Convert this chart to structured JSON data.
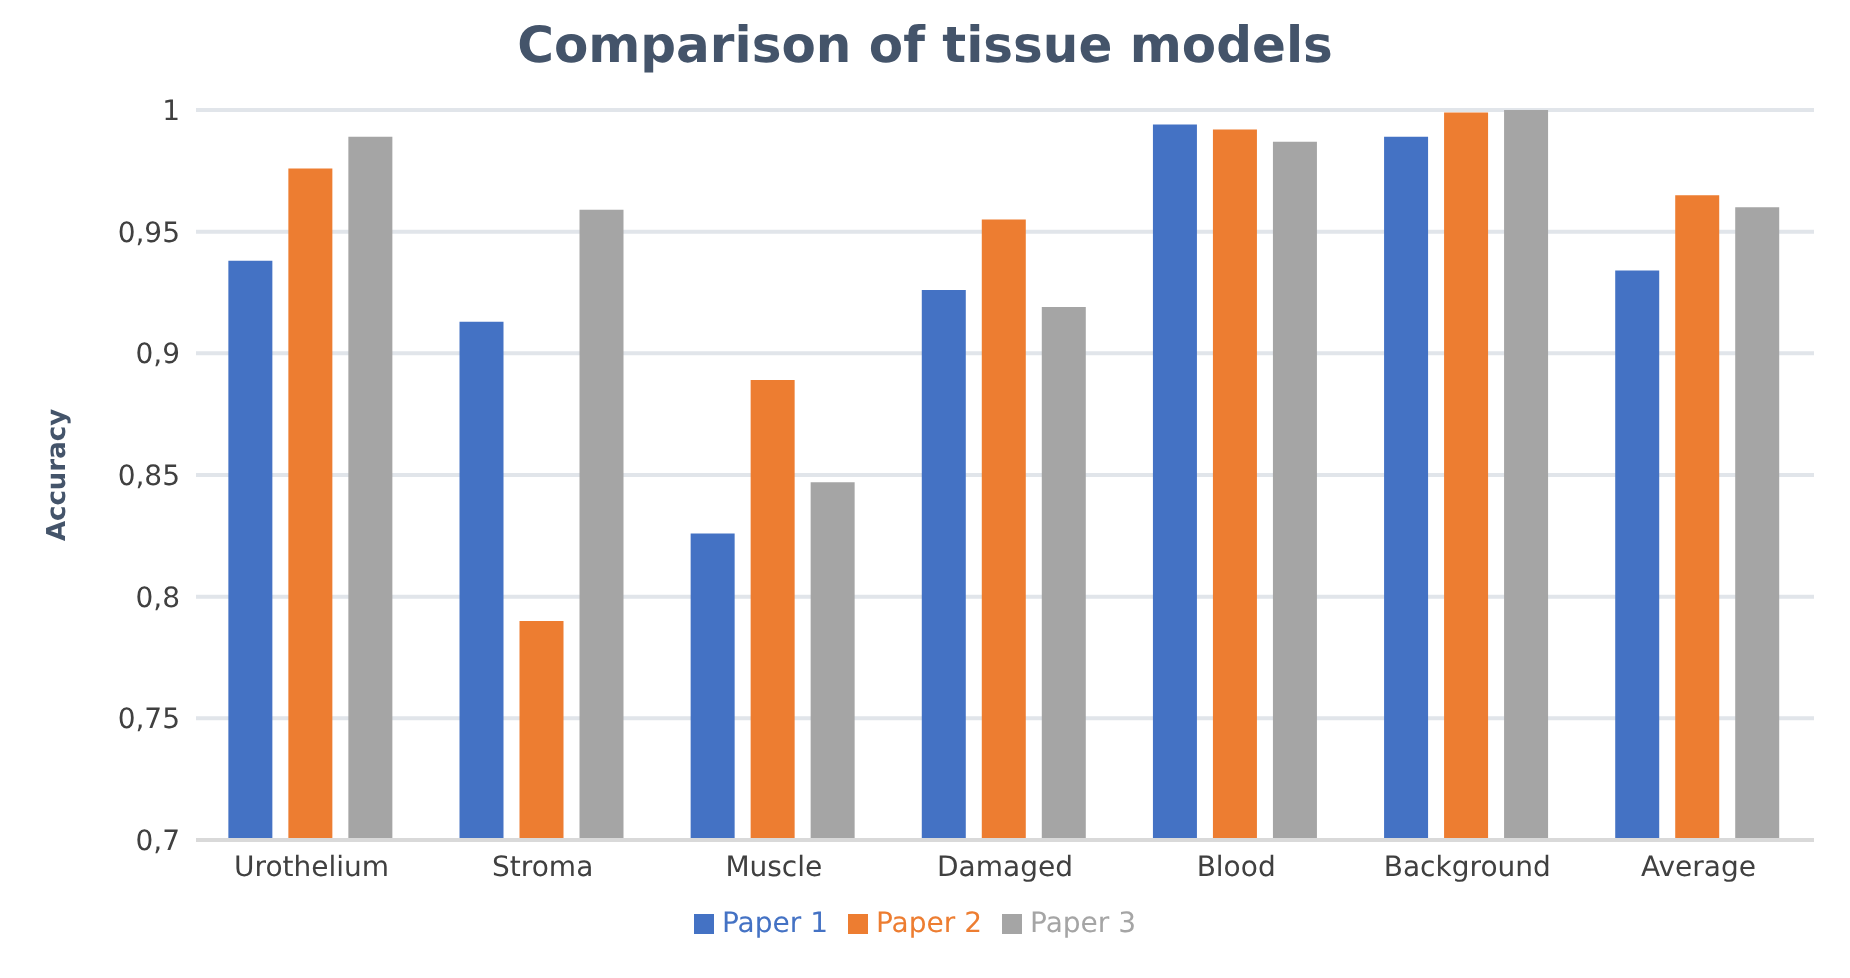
{
  "chart_data": {
    "type": "bar",
    "title": "Comparison of tissue models",
    "ylabel": "Accuracy",
    "categories": [
      "Urothelium",
      "Stroma",
      "Muscle",
      "Damaged",
      "Blood",
      "Background",
      "Average"
    ],
    "series": [
      {
        "name": "Paper 1",
        "color": "#4472c4",
        "values": [
          0.938,
          0.913,
          0.826,
          0.926,
          0.994,
          0.989,
          0.934
        ]
      },
      {
        "name": "Paper 2",
        "color": "#ed7d31",
        "values": [
          0.976,
          0.79,
          0.889,
          0.955,
          0.992,
          0.999,
          0.965
        ]
      },
      {
        "name": "Paper 3",
        "color": "#a5a5a5",
        "values": [
          0.989,
          0.959,
          0.847,
          0.919,
          0.987,
          1.0,
          0.96
        ]
      }
    ],
    "ylim": [
      0.7,
      1
    ],
    "yticks": [
      {
        "value": 0.7,
        "label": "0,7"
      },
      {
        "value": 0.75,
        "label": "0,75"
      },
      {
        "value": 0.8,
        "label": "0,8"
      },
      {
        "value": 0.85,
        "label": "0,85"
      },
      {
        "value": 0.9,
        "label": "0,9"
      },
      {
        "value": 0.95,
        "label": "0,95"
      },
      {
        "value": 1,
        "label": "1"
      }
    ],
    "grid": "y",
    "legend": "bottom"
  }
}
